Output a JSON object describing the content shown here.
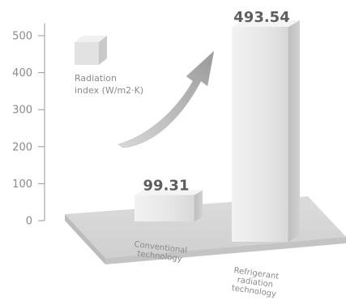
{
  "chart_data": {
    "type": "bar",
    "categories": [
      [
        "Conventional",
        "technology"
      ],
      [
        "Refrigerant",
        "radiation",
        "technology"
      ]
    ],
    "values": [
      99.31,
      493.54
    ],
    "value_labels": [
      "99.31",
      "493.54"
    ],
    "ylim": [
      0,
      550
    ],
    "yticks": [
      0,
      100,
      200,
      300,
      400,
      500
    ],
    "legend": {
      "lines": [
        "Radiation",
        "index (W/m2·K)"
      ],
      "placement": "top-left"
    },
    "grid": false,
    "colors": {
      "bar_front": "#e4e4e4",
      "bar_side": "#c9c9c9",
      "platform": "#d3d3d3",
      "axis": "#9a9a9a",
      "arrow": "#a8a8a8"
    }
  }
}
